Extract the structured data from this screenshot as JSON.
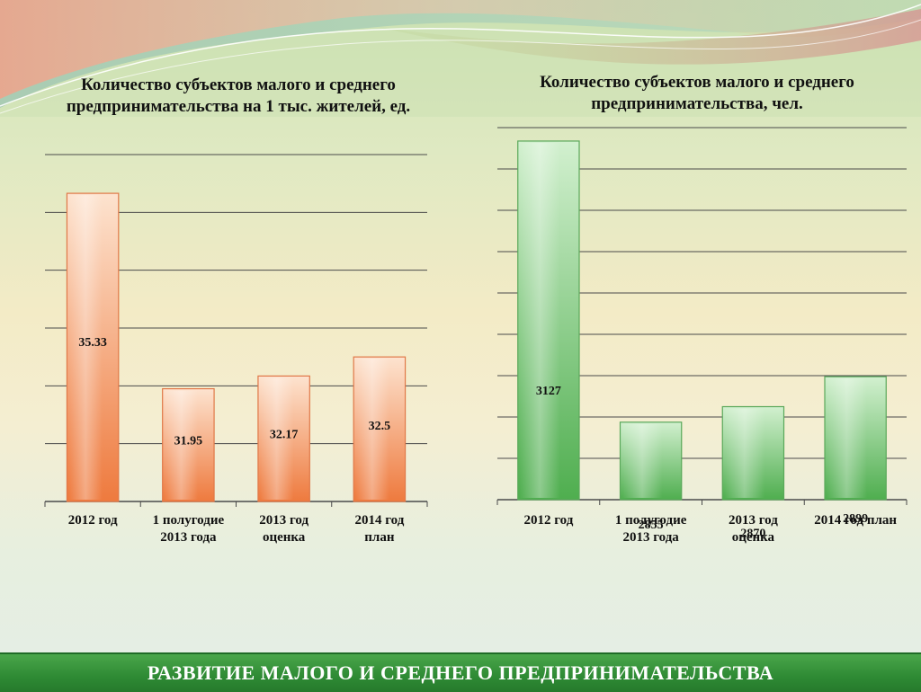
{
  "footer": {
    "title": "РАЗВИТИЕ МАЛОГО И СРЕДНЕГО ПРЕДПРИНИМАТЕЛЬСТВА"
  },
  "colors": {
    "left_bar_light": "#fde3cf",
    "left_bar_dark": "#ee7a3e",
    "right_bar_light": "#d2f0cf",
    "right_bar_dark": "#4fae4f",
    "footer": "#2e8a34"
  },
  "chart_data": [
    {
      "type": "bar",
      "title": "Количество субъектов малого и среднего предпринимательства на 1 тыс. жителей, ед.",
      "categories": [
        "2012 год",
        "1  полугодие 2013 года",
        "2013 год оценка",
        "2014 год план"
      ],
      "category_lines": [
        [
          "2012 год"
        ],
        [
          "1  полугодие",
          "2013 года"
        ],
        [
          "2013 год",
          "оценка"
        ],
        [
          "2014 год",
          "план"
        ]
      ],
      "values": [
        35.33,
        31.95,
        32.17,
        32.5
      ],
      "value_labels": [
        "35.33",
        "31.95",
        "32.17",
        "32.5"
      ],
      "ylim": [
        30,
        36
      ],
      "grid": true,
      "legend": "none"
    },
    {
      "type": "bar",
      "title": "Количество субъектов малого и среднего предпринимательства, чел.",
      "categories": [
        "2012 год",
        "1  полугодие 2013 года",
        "2013 год оценка",
        "2014 год план"
      ],
      "category_lines": [
        [
          "2012 год"
        ],
        [
          "1  полугодие",
          "2013 года"
        ],
        [
          "2013 год",
          "оценка"
        ],
        [
          "2014 год план"
        ]
      ],
      "values": [
        3127,
        2855,
        2870,
        2899
      ],
      "value_labels": [
        "3127",
        "2855",
        "2870",
        "2899"
      ],
      "ylim": [
        2780,
        3140
      ],
      "grid": true,
      "legend": "none"
    }
  ]
}
